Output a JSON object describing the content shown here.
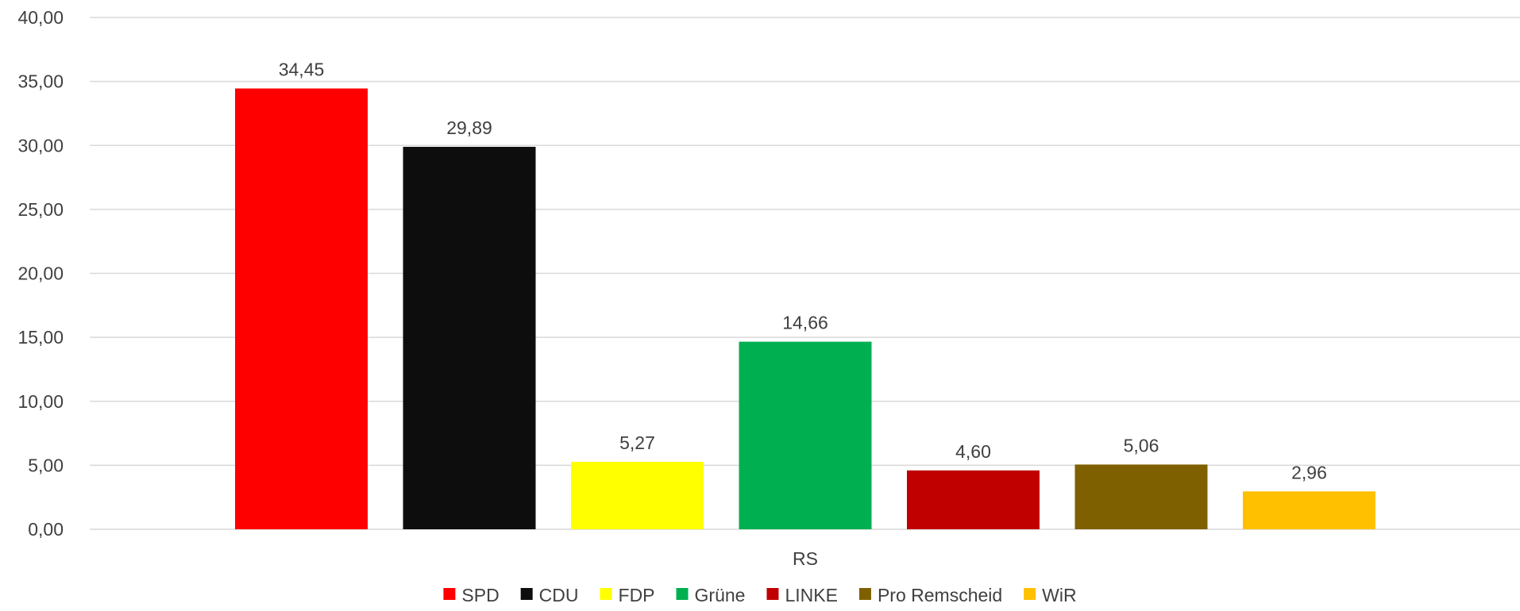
{
  "chart_data": {
    "type": "bar",
    "categories": [
      "RS"
    ],
    "series": [
      {
        "name": "SPD",
        "values": [
          34.45
        ],
        "color": "#ff0000"
      },
      {
        "name": "CDU",
        "values": [
          29.89
        ],
        "color": "#0d0d0d"
      },
      {
        "name": "FDP",
        "values": [
          5.27
        ],
        "color": "#ffff00"
      },
      {
        "name": "Grüne",
        "values": [
          14.66
        ],
        "color": "#00b050"
      },
      {
        "name": "LINKE",
        "values": [
          4.6
        ],
        "color": "#c00000"
      },
      {
        "name": "Pro Remscheid",
        "values": [
          5.06
        ],
        "color": "#7f6000"
      },
      {
        "name": "WiR",
        "values": [
          2.96
        ],
        "color": "#ffc000"
      }
    ],
    "data_labels": [
      "34,45",
      "29,89",
      "5,27",
      "14,66",
      "4,60",
      "5,06",
      "2,96"
    ],
    "y_ticks": [
      "0,00",
      "5,00",
      "10,00",
      "15,00",
      "20,00",
      "25,00",
      "30,00",
      "35,00",
      "40,00"
    ],
    "ylim": [
      0,
      40
    ],
    "y_step": 5,
    "title": "",
    "xlabel": "",
    "ylabel": "",
    "grid": true,
    "legend_position": "bottom"
  }
}
